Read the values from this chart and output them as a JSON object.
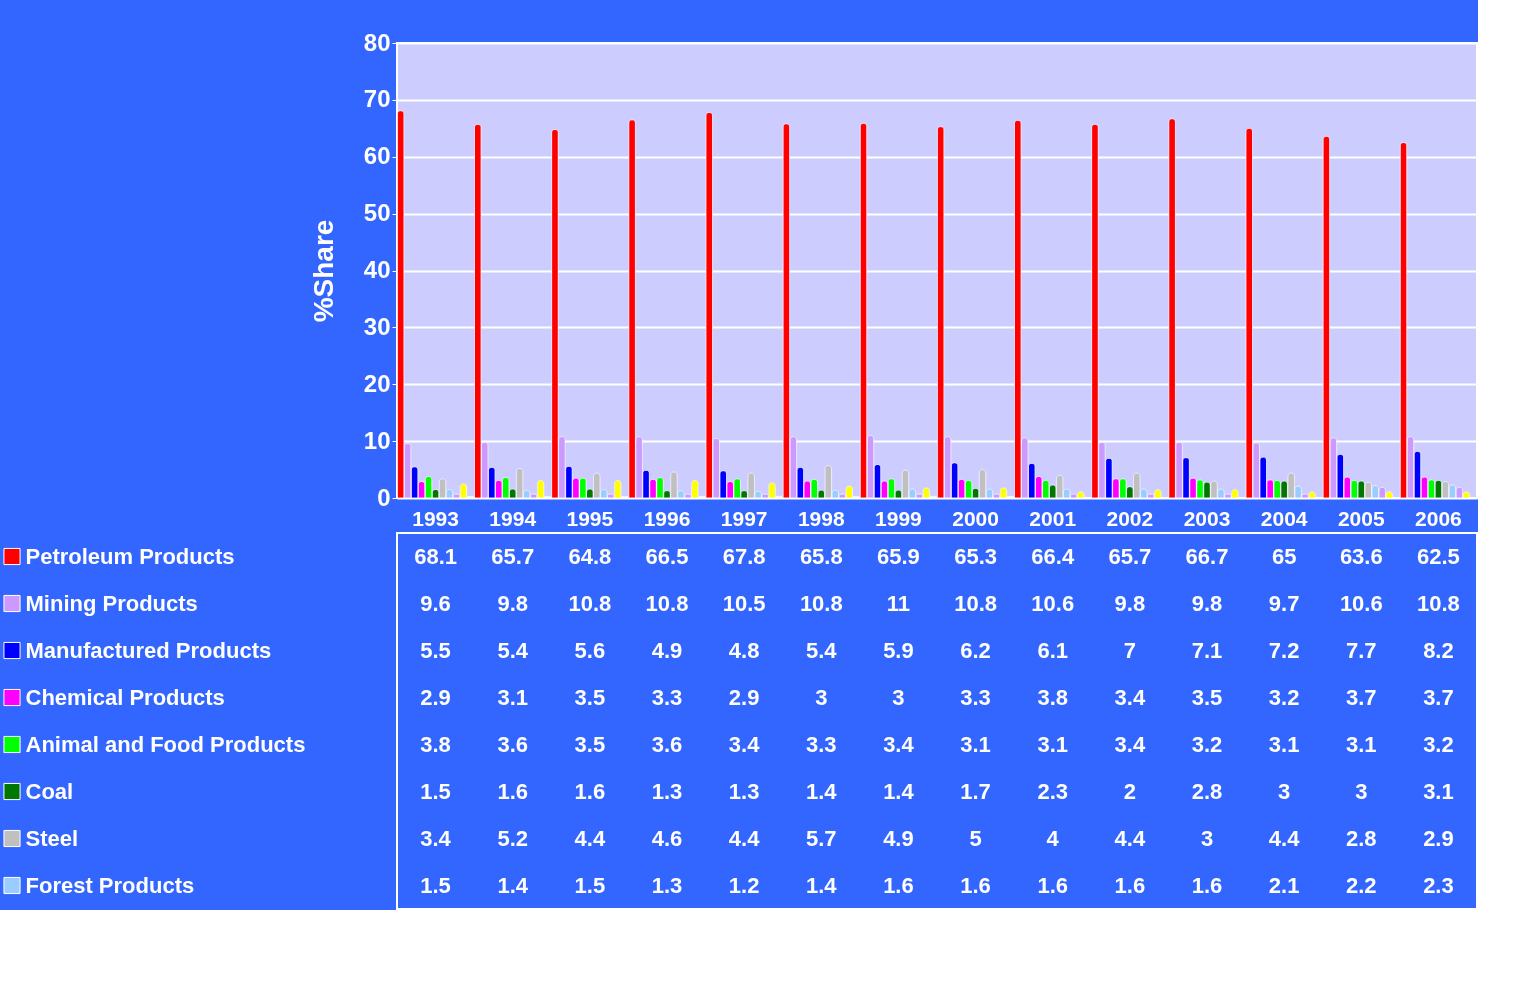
{
  "chart_data": {
    "type": "bar",
    "ylabel": "%Share",
    "categories": [
      "1993",
      "1994",
      "1995",
      "1996",
      "1997",
      "1998",
      "1999",
      "2000",
      "2001",
      "2002",
      "2003",
      "2004",
      "2005",
      "2006"
    ],
    "ylim": [
      0,
      80
    ],
    "yticks": [
      0,
      10,
      20,
      30,
      40,
      50,
      60,
      70,
      80
    ],
    "grid": "y",
    "legend": "bottom left",
    "series": [
      {
        "name": "Petroleum Products",
        "color": "#ff0000",
        "values": [
          68.1,
          65.7,
          64.8,
          66.5,
          67.8,
          65.8,
          65.9,
          65.3,
          66.4,
          65.7,
          66.7,
          65,
          63.6,
          62.5
        ],
        "value_labels": [
          "68.1",
          "65.7",
          "64.8",
          "66.5",
          "67.8",
          "65.8",
          "65.9",
          "65.3",
          "66.4",
          "65.7",
          "66.7",
          "65",
          "63.6",
          "62.5"
        ]
      },
      {
        "name": "Mining Products",
        "color": "#cc99ff",
        "values": [
          9.6,
          9.8,
          10.8,
          10.8,
          10.5,
          10.8,
          11,
          10.8,
          10.6,
          9.8,
          9.8,
          9.7,
          10.6,
          10.8
        ],
        "value_labels": [
          "9.6",
          "9.8",
          "10.8",
          "10.8",
          "10.5",
          "10.8",
          "11",
          "10.8",
          "10.6",
          "9.8",
          "9.8",
          "9.7",
          "10.6",
          "10.8"
        ]
      },
      {
        "name": "Manufactured Products",
        "color": "#0000ff",
        "values": [
          5.5,
          5.4,
          5.6,
          4.9,
          4.8,
          5.4,
          5.9,
          6.2,
          6.1,
          7,
          7.1,
          7.2,
          7.7,
          8.2
        ],
        "value_labels": [
          "5.5",
          "5.4",
          "5.6",
          "4.9",
          "4.8",
          "5.4",
          "5.9",
          "6.2",
          "6.1",
          "7",
          "7.1",
          "7.2",
          "7.7",
          "8.2"
        ]
      },
      {
        "name": "Chemical Products",
        "color": "#ff00ff",
        "values": [
          2.9,
          3.1,
          3.5,
          3.3,
          2.9,
          3,
          3,
          3.3,
          3.8,
          3.4,
          3.5,
          3.2,
          3.7,
          3.7
        ],
        "value_labels": [
          "2.9",
          "3.1",
          "3.5",
          "3.3",
          "2.9",
          "3",
          "3",
          "3.3",
          "3.8",
          "3.4",
          "3.5",
          "3.2",
          "3.7",
          "3.7"
        ]
      },
      {
        "name": "Animal and Food Products",
        "color": "#00ff00",
        "values": [
          3.8,
          3.6,
          3.5,
          3.6,
          3.4,
          3.3,
          3.4,
          3.1,
          3.1,
          3.4,
          3.2,
          3.1,
          3.1,
          3.2
        ],
        "value_labels": [
          "3.8",
          "3.6",
          "3.5",
          "3.6",
          "3.4",
          "3.3",
          "3.4",
          "3.1",
          "3.1",
          "3.4",
          "3.2",
          "3.1",
          "3.1",
          "3.2"
        ]
      },
      {
        "name": "Coal",
        "color": "#007700",
        "values": [
          1.5,
          1.6,
          1.6,
          1.3,
          1.3,
          1.4,
          1.4,
          1.7,
          2.3,
          2,
          2.8,
          3,
          3,
          3.1
        ],
        "value_labels": [
          "1.5",
          "1.6",
          "1.6",
          "1.3",
          "1.3",
          "1.4",
          "1.4",
          "1.7",
          "2.3",
          "2",
          "2.8",
          "3",
          "3",
          "3.1"
        ]
      },
      {
        "name": "Steel",
        "color": "#c0c0c0",
        "values": [
          3.4,
          5.2,
          4.4,
          4.6,
          4.4,
          5.7,
          4.9,
          5,
          4,
          4.4,
          3,
          4.4,
          2.8,
          2.9
        ],
        "value_labels": [
          "3.4",
          "5.2",
          "4.4",
          "4.6",
          "4.4",
          "5.7",
          "4.9",
          "5",
          "4",
          "4.4",
          "3",
          "4.4",
          "2.8",
          "2.9"
        ]
      },
      {
        "name": "Forest Products",
        "color": "#99ccff",
        "values": [
          1.5,
          1.4,
          1.5,
          1.3,
          1.2,
          1.4,
          1.6,
          1.6,
          1.6,
          1.6,
          1.6,
          2.1,
          2.2,
          2.3
        ],
        "value_labels": [
          "1.5",
          "1.4",
          "1.5",
          "1.3",
          "1.2",
          "1.4",
          "1.6",
          "1.6",
          "1.6",
          "1.6",
          "1.6",
          "2.1",
          "2.2",
          "2.3"
        ]
      },
      {
        "color": "#cc99ff",
        "values": [
          0.7,
          0.7,
          0.7,
          0.7,
          0.7,
          0.7,
          0.7,
          0.7,
          0.7,
          0.7,
          0.7,
          0.7,
          1.9,
          1.9
        ]
      },
      {
        "color": "#ffff00",
        "values": [
          2.5,
          3.1,
          3.1,
          3.1,
          2.7,
          2.1,
          1.8,
          1.8,
          1.1,
          1.5,
          1.5,
          1.1,
          1.1,
          1.1
        ]
      },
      {
        "color": "#ffffff",
        "values": [
          0.3,
          0.3,
          0.3,
          0.3,
          0.3,
          0.3,
          0.3,
          0.3,
          null,
          null,
          null,
          null,
          null,
          null
        ]
      }
    ]
  }
}
